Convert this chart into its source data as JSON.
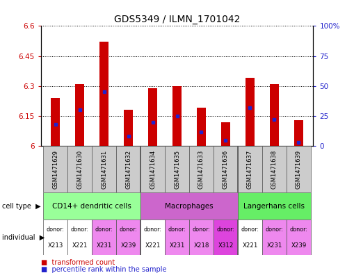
{
  "title": "GDS5349 / ILMN_1701042",
  "samples": [
    "GSM1471629",
    "GSM1471630",
    "GSM1471631",
    "GSM1471632",
    "GSM1471634",
    "GSM1471635",
    "GSM1471633",
    "GSM1471636",
    "GSM1471637",
    "GSM1471638",
    "GSM1471639"
  ],
  "red_values": [
    6.24,
    6.31,
    6.52,
    6.18,
    6.29,
    6.3,
    6.19,
    6.12,
    6.34,
    6.31,
    6.13
  ],
  "blue_values_pct": [
    18,
    30,
    45,
    8,
    20,
    25,
    12,
    5,
    32,
    22,
    3
  ],
  "ylim_left": [
    6.0,
    6.6
  ],
  "ylim_right": [
    0,
    100
  ],
  "yticks_left": [
    6.0,
    6.15,
    6.3,
    6.45,
    6.6
  ],
  "yticks_right": [
    0,
    25,
    50,
    75,
    100
  ],
  "ytick_labels_left": [
    "6",
    "6.15",
    "6.3",
    "6.45",
    "6.6"
  ],
  "ytick_labels_right": [
    "0",
    "25",
    "50",
    "75",
    "100%"
  ],
  "group_spans": [
    {
      "label": "CD14+ dendritic cells",
      "start": 0,
      "end": 3,
      "color": "#99ff99"
    },
    {
      "label": "Macrophages",
      "start": 4,
      "end": 7,
      "color": "#cc66cc"
    },
    {
      "label": "Langerhans cells",
      "start": 8,
      "end": 10,
      "color": "#66ee66"
    }
  ],
  "donor_labels": [
    "X213",
    "X221",
    "X231",
    "X239",
    "X221",
    "X231",
    "X218",
    "X312",
    "X221",
    "X231",
    "X239"
  ],
  "donor_colors": [
    "#ffffff",
    "#ffffff",
    "#ee88ee",
    "#ee88ee",
    "#ffffff",
    "#ee88ee",
    "#ee88ee",
    "#dd44dd",
    "#ffffff",
    "#ee88ee",
    "#ee88ee"
  ],
  "bar_width": 0.35,
  "red_color": "#cc0000",
  "blue_color": "#2222cc",
  "tick_color_left": "#cc0000",
  "tick_color_right": "#2222cc",
  "bar_base": 6.0,
  "xlabels_bg": "#cccccc"
}
